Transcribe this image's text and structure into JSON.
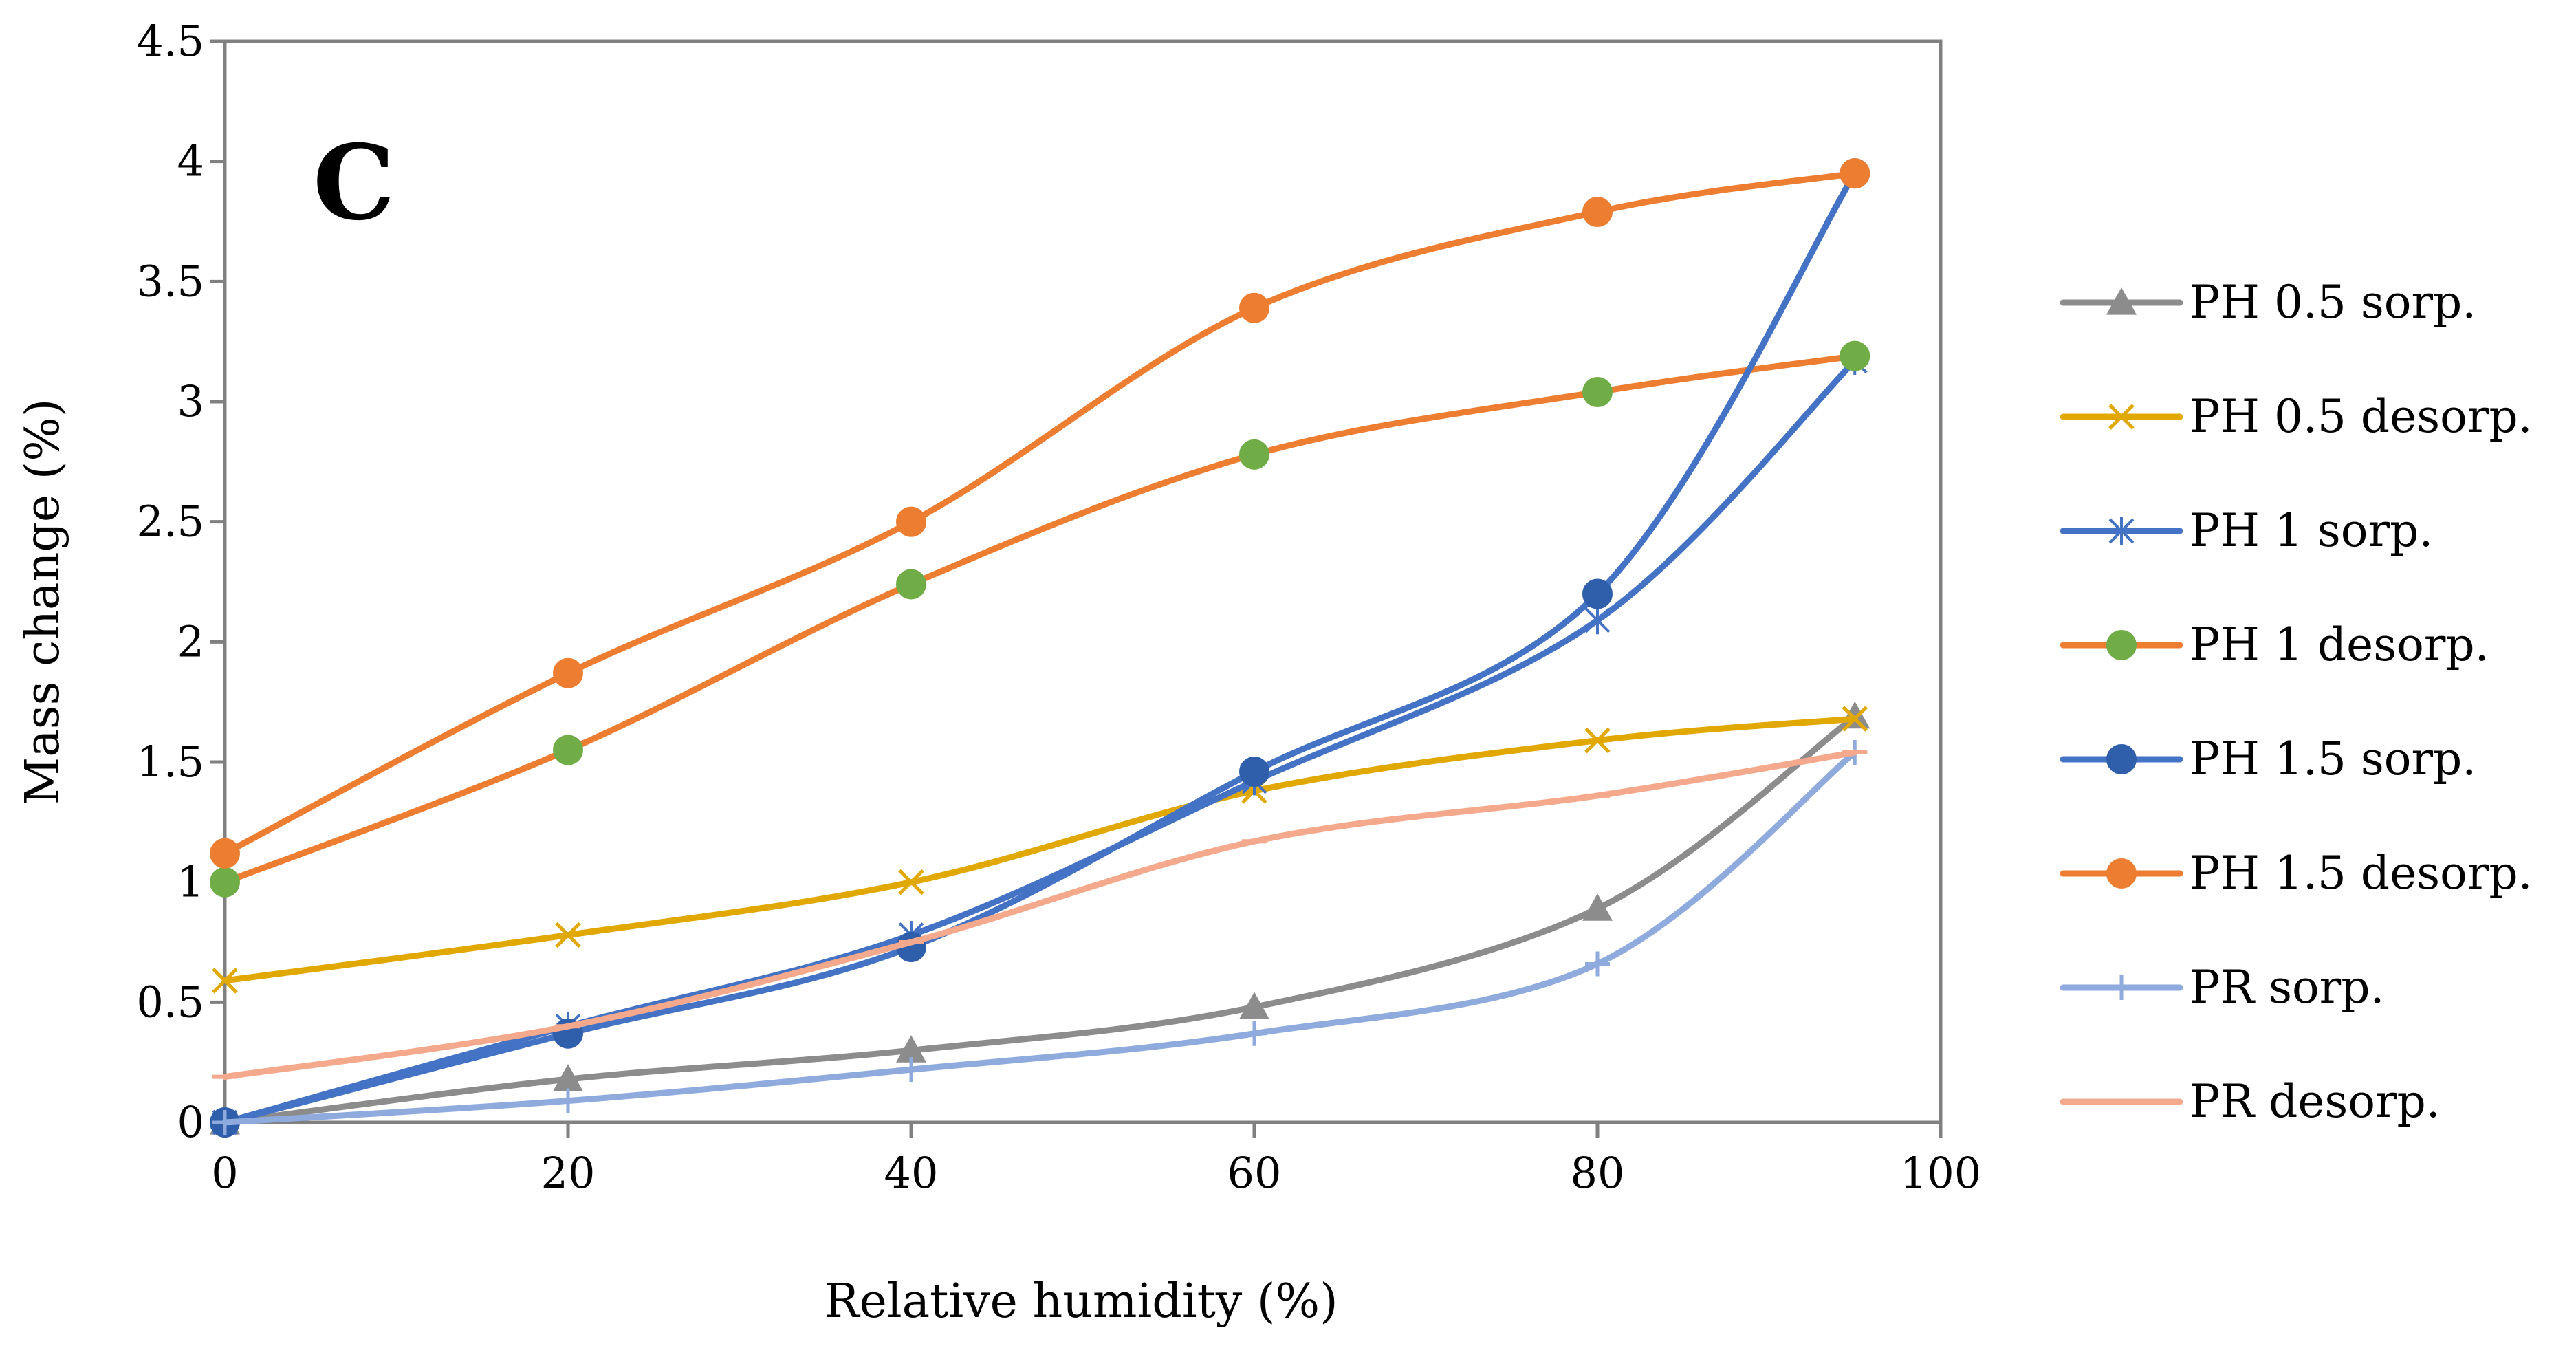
{
  "chart_data": {
    "type": "line",
    "panel_label": "C",
    "xlabel": "Relative humidity (%)",
    "ylabel": "Mass change (%)",
    "xlim": [
      0,
      100
    ],
    "ylim": [
      0,
      4.5
    ],
    "x_ticks": [
      "0",
      "20",
      "40",
      "60",
      "80",
      "100"
    ],
    "y_ticks": [
      "0",
      "0.5",
      "1",
      "1.5",
      "2",
      "2.5",
      "3",
      "3.5",
      "4",
      "4.5"
    ],
    "grid": false,
    "legend_position": "right",
    "x": [
      0,
      20,
      40,
      60,
      80,
      95
    ],
    "series": [
      {
        "name": "PH 0.5 sorp.",
        "values": [
          0.0,
          0.18,
          0.3,
          0.48,
          0.89,
          1.69
        ],
        "color": "#8c8c8c",
        "marker": "triangle",
        "marker_color": "#8c8c8c"
      },
      {
        "name": "PH 0.5 desorp.",
        "values": [
          0.59,
          0.78,
          1.0,
          1.38,
          1.59,
          1.68
        ],
        "color": "#e0a800",
        "marker": "x",
        "marker_color": "#e0a800"
      },
      {
        "name": "PH 1 sorp.",
        "values": [
          0.0,
          0.4,
          0.78,
          1.42,
          2.09,
          3.17
        ],
        "color": "#4472c4",
        "marker": "star",
        "marker_color": "#4472c4"
      },
      {
        "name": "PH 1 desorp.",
        "values": [
          1.0,
          1.55,
          2.24,
          2.78,
          3.04,
          3.19
        ],
        "color": "#ed7d31",
        "marker": "circle",
        "marker_color": "#70ad47"
      },
      {
        "name": "PH 1.5 sorp.",
        "values": [
          0.0,
          0.37,
          0.73,
          1.46,
          2.2,
          3.95
        ],
        "color": "#4472c4",
        "marker": "circle",
        "marker_color": "#2f5eab"
      },
      {
        "name": "PH 1.5 desorp.",
        "values": [
          1.12,
          1.87,
          2.5,
          3.39,
          3.79,
          3.95
        ],
        "color": "#ed7d31",
        "marker": "circle",
        "marker_color": "#ed7d31"
      },
      {
        "name": "PR sorp.",
        "values": [
          0.0,
          0.09,
          0.22,
          0.37,
          0.66,
          1.54
        ],
        "color": "#8faadc",
        "marker": "plus",
        "marker_color": "#8faadc"
      },
      {
        "name": "PR desorp.",
        "values": [
          0.19,
          0.4,
          0.75,
          1.17,
          1.36,
          1.54
        ],
        "color": "#f4a88c",
        "marker": "dash",
        "marker_color": "#f4a88c"
      }
    ]
  }
}
